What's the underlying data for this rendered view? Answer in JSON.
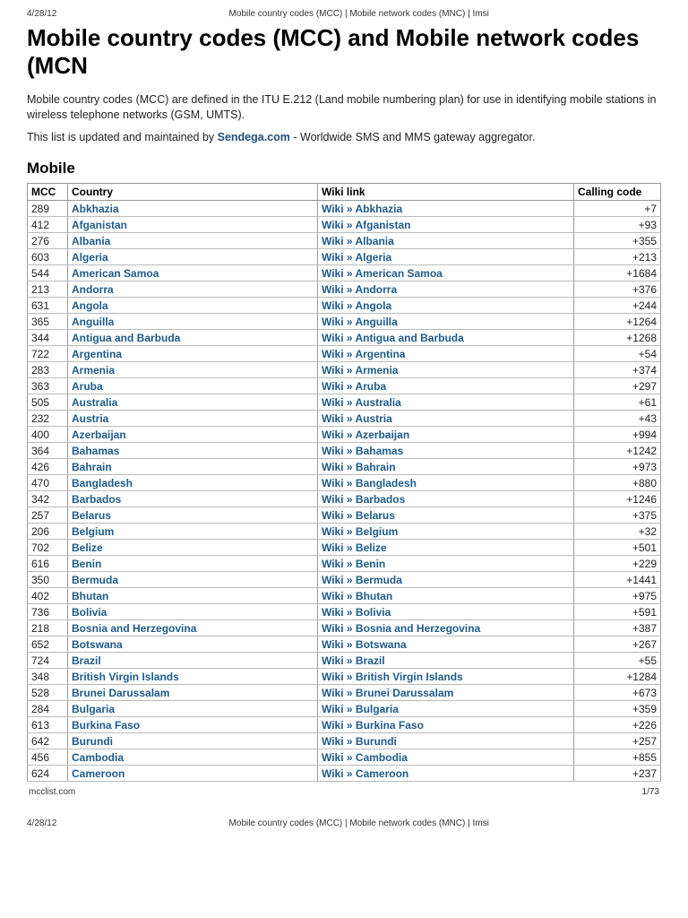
{
  "meta": {
    "date": "4/28/12",
    "header_title": "Mobile country codes (MCC) | Mobile network codes (MNC) | Imsi",
    "footer_left": "mcclist.com",
    "footer_right": "1/73"
  },
  "title": "Mobile country codes (MCC) and Mobile network codes (MCN",
  "intro1_a": "Mobile country codes (MCC) are defined in the ITU E.212 (Land mobile numbering plan) for use in identifying mobile stations in wireless telephone networks (GSM, UMTS).",
  "intro2_a": "This list is updated and maintained by ",
  "intro2_link": "Sendega.com",
  "intro2_b": " - Worldwide SMS and MMS gateway aggregator.",
  "section": "Mobile",
  "link_color": "#1f5b8a",
  "text_color": "#222222",
  "border_color": "#999999",
  "columns": {
    "mcc": "MCC",
    "country": "Country",
    "wiki": "Wiki link",
    "cc": "Calling code"
  },
  "wiki_prefix": "Wiki » ",
  "rows": [
    {
      "mcc": "289",
      "country": "Abkhazia",
      "cc": "+7"
    },
    {
      "mcc": "412",
      "country": "Afganistan",
      "cc": "+93"
    },
    {
      "mcc": "276",
      "country": "Albania",
      "cc": "+355"
    },
    {
      "mcc": "603",
      "country": "Algeria",
      "cc": "+213"
    },
    {
      "mcc": "544",
      "country": "American Samoa",
      "cc": "+1684"
    },
    {
      "mcc": "213",
      "country": "Andorra",
      "cc": "+376"
    },
    {
      "mcc": "631",
      "country": "Angola",
      "cc": "+244"
    },
    {
      "mcc": "365",
      "country": "Anguilla",
      "cc": "+1264"
    },
    {
      "mcc": "344",
      "country": "Antigua and Barbuda",
      "cc": "+1268"
    },
    {
      "mcc": "722",
      "country": "Argentina",
      "cc": "+54"
    },
    {
      "mcc": "283",
      "country": "Armenia",
      "cc": "+374"
    },
    {
      "mcc": "363",
      "country": "Aruba",
      "cc": "+297"
    },
    {
      "mcc": "505",
      "country": "Australia",
      "cc": "+61"
    },
    {
      "mcc": "232",
      "country": "Austria",
      "cc": "+43"
    },
    {
      "mcc": "400",
      "country": "Azerbaijan",
      "cc": "+994"
    },
    {
      "mcc": "364",
      "country": "Bahamas",
      "cc": "+1242"
    },
    {
      "mcc": "426",
      "country": "Bahrain",
      "cc": "+973"
    },
    {
      "mcc": "470",
      "country": "Bangladesh",
      "cc": "+880"
    },
    {
      "mcc": "342",
      "country": "Barbados",
      "cc": "+1246"
    },
    {
      "mcc": "257",
      "country": "Belarus",
      "cc": "+375"
    },
    {
      "mcc": "206",
      "country": "Belgium",
      "cc": "+32"
    },
    {
      "mcc": "702",
      "country": "Belize",
      "cc": "+501"
    },
    {
      "mcc": "616",
      "country": "Benin",
      "cc": "+229"
    },
    {
      "mcc": "350",
      "country": "Bermuda",
      "cc": "+1441"
    },
    {
      "mcc": "402",
      "country": "Bhutan",
      "cc": "+975"
    },
    {
      "mcc": "736",
      "country": "Bolivia",
      "cc": "+591"
    },
    {
      "mcc": "218",
      "country": "Bosnia and Herzegovina",
      "cc": "+387"
    },
    {
      "mcc": "652",
      "country": "Botswana",
      "cc": "+267"
    },
    {
      "mcc": "724",
      "country": "Brazil",
      "cc": "+55"
    },
    {
      "mcc": "348",
      "country": "British Virgin Islands",
      "cc": "+1284"
    },
    {
      "mcc": "528",
      "country": "Brunei Darussalam",
      "cc": "+673"
    },
    {
      "mcc": "284",
      "country": "Bulgaria",
      "cc": "+359"
    },
    {
      "mcc": "613",
      "country": "Burkina Faso",
      "cc": "+226"
    },
    {
      "mcc": "642",
      "country": "Burundi",
      "cc": "+257"
    },
    {
      "mcc": "456",
      "country": "Cambodia",
      "cc": "+855"
    },
    {
      "mcc": "624",
      "country": "Cameroon",
      "cc": "+237"
    }
  ]
}
